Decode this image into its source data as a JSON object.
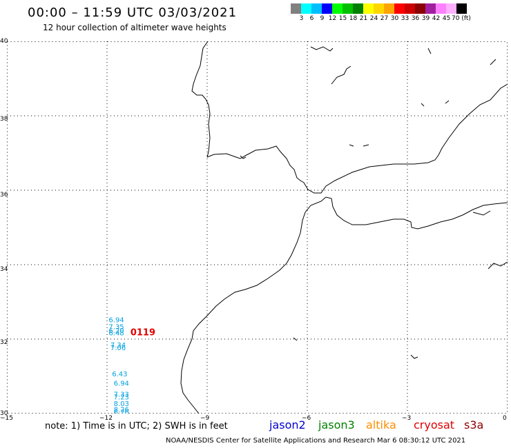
{
  "title": "00:00 – 11:59 UTC 03/03/2021",
  "subtitle": "12 hour collection of altimeter wave heights",
  "legend": {
    "colors": [
      "#808080",
      "#00ffff",
      "#00bfff",
      "#0000ff",
      "#00ff00",
      "#00c000",
      "#008000",
      "#ffff00",
      "#ffd700",
      "#ffa500",
      "#ff0000",
      "#cc0000",
      "#8b0000",
      "#a020a0",
      "#ff80ff",
      "#ffb0ff",
      "#000000"
    ],
    "labels": [
      "3",
      "6",
      "9",
      "12",
      "15",
      "18",
      "21",
      "24",
      "27",
      "30",
      "33",
      "36",
      "39",
      "42",
      "45",
      "70 (ft)"
    ]
  },
  "axes": {
    "lat_labels": [
      "40",
      "38",
      "36",
      "34",
      "32",
      "30"
    ],
    "lon_labels": [
      "−15",
      "−12",
      "−9",
      "−6",
      "−3",
      "0"
    ]
  },
  "observations": [
    {
      "text": "6.94",
      "lon": -11.95,
      "lat": 32.45,
      "color": "#00a0e0"
    },
    {
      "text": "7.35",
      "lon": -11.95,
      "lat": 32.27,
      "color": "#00a0e0"
    },
    {
      "text": "6.20",
      "lon": -11.95,
      "lat": 32.17,
      "color": "#00a0e0"
    },
    {
      "text": "6.48",
      "lon": -11.95,
      "lat": 32.1,
      "color": "#00a0e0"
    },
    {
      "text": "7.34",
      "lon": -11.9,
      "lat": 31.78,
      "color": "#00a0e0"
    },
    {
      "text": "7.06",
      "lon": -11.9,
      "lat": 31.7,
      "color": "#00a0e0"
    },
    {
      "text": "6.43",
      "lon": -11.85,
      "lat": 31.0,
      "color": "#00a0e0"
    },
    {
      "text": "6.94",
      "lon": -11.8,
      "lat": 30.75,
      "color": "#00a0e0"
    },
    {
      "text": "7.33",
      "lon": -11.8,
      "lat": 30.45,
      "color": "#00a0e0"
    },
    {
      "text": "7.23",
      "lon": -11.8,
      "lat": 30.38,
      "color": "#00a0e0"
    },
    {
      "text": "8.03",
      "lon": -11.8,
      "lat": 30.2,
      "color": "#00a0e0"
    },
    {
      "text": "8.26",
      "lon": -11.8,
      "lat": 30.05,
      "color": "#00a0e0"
    },
    {
      "text": "6.76",
      "lon": -11.8,
      "lat": 29.97,
      "color": "#00a0e0"
    },
    {
      "text": "8.18",
      "lon": -11.7,
      "lat": 29.35,
      "color": "#00a0e0"
    },
    {
      "text": "6.89",
      "lon": -11.7,
      "lat": 29.27,
      "color": "#00a0e0"
    },
    {
      "text": "7.72",
      "lon": -11.7,
      "lat": 29.18,
      "color": "#00a0e0"
    },
    {
      "text": "0119",
      "lon": -11.3,
      "lat": 32.1,
      "color": "#dd0000"
    }
  ],
  "note": "note: 1) Time is in UTC; 2) SWH is in feet",
  "satellites": [
    {
      "name": "jason2",
      "color": "#0000cc"
    },
    {
      "name": "jason3",
      "color": "#008000"
    },
    {
      "name": "altika",
      "color": "#ff8c00"
    },
    {
      "name": "cryosat",
      "color": "#dd0000"
    },
    {
      "name": "s3a",
      "color": "#8b0000"
    }
  ],
  "credit": "NOAA/NESDIS Center for Satellite Applications and Research   Mar  6 08:30:12 UTC 2021"
}
